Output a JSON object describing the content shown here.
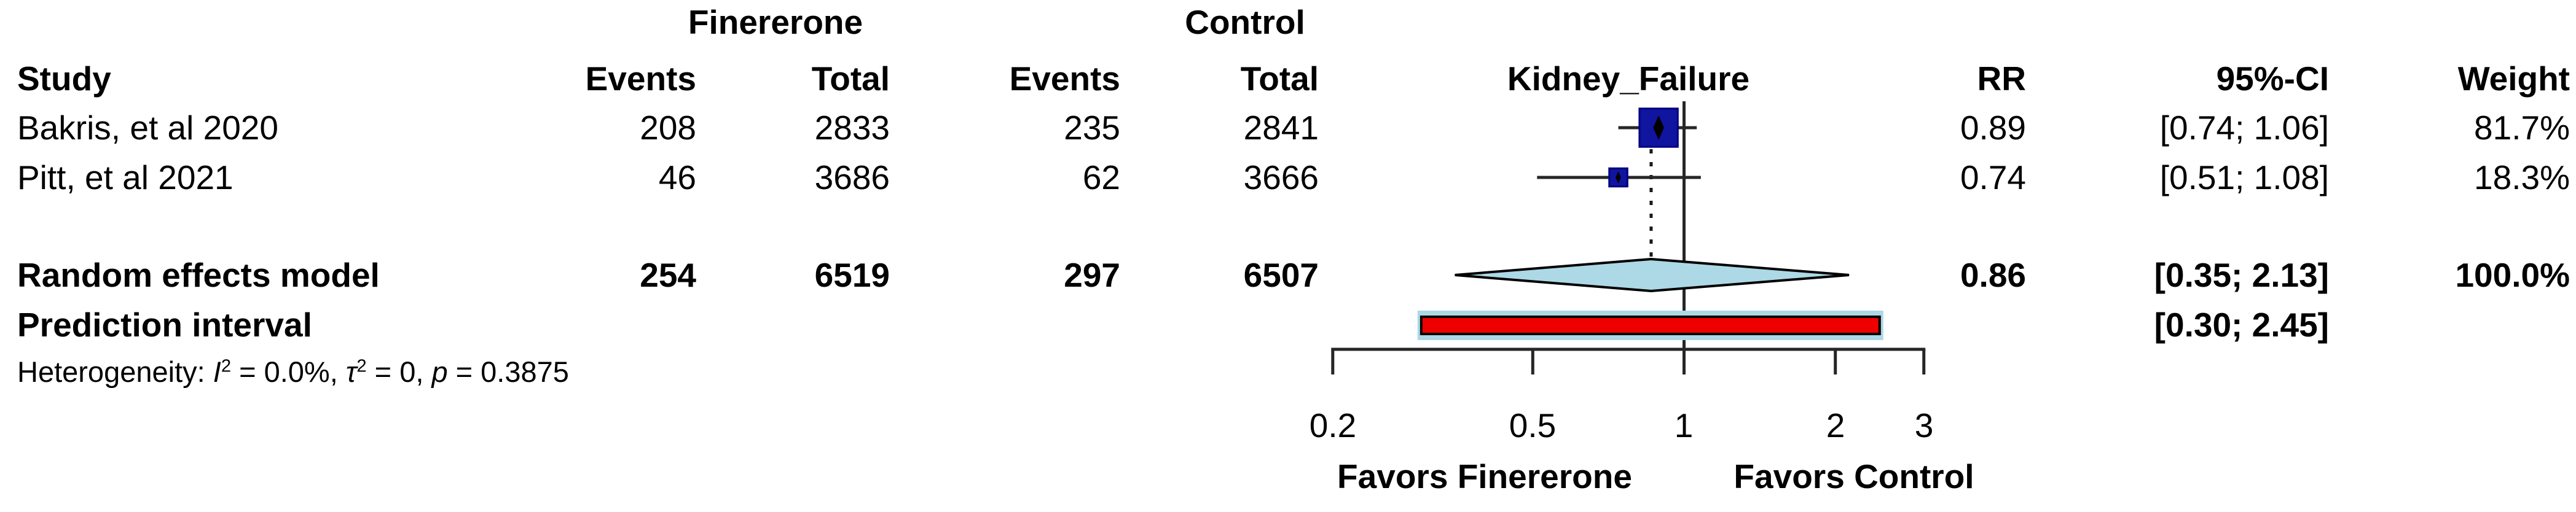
{
  "table": {
    "group_headers": {
      "treatment": "Finererone",
      "control": "Control"
    },
    "columns": {
      "study": "Study",
      "events": "Events",
      "total": "Total",
      "rr": "RR",
      "ci": "95%-CI",
      "weight": "Weight"
    },
    "plot_title": "Kidney_Failure",
    "studies": [
      {
        "name": "Bakris, et al 2020",
        "treat_events": "208",
        "treat_total": "2833",
        "ctrl_events": "235",
        "ctrl_total": "2841",
        "rr": "0.89",
        "ci": "[0.74; 1.06]",
        "weight": "81.7%"
      },
      {
        "name": "Pitt, et al 2021",
        "treat_events": "46",
        "treat_total": "3686",
        "ctrl_events": "62",
        "ctrl_total": "3666",
        "rr": "0.74",
        "ci": "[0.51; 1.08]",
        "weight": "18.3%"
      }
    ],
    "summary": {
      "name": "Random effects model",
      "treat_events": "254",
      "treat_total": "6519",
      "ctrl_events": "297",
      "ctrl_total": "6507",
      "rr": "0.86",
      "ci": "[0.35; 2.13]",
      "weight": "100.0%"
    },
    "prediction": {
      "name": "Prediction interval",
      "ci": "[0.30; 2.45]"
    },
    "heterogeneity": {
      "prefix": "Heterogeneity: ",
      "i_sym": "I",
      "i_sup": "2",
      "i_val": " = 0.0%, ",
      "tau_sym": "τ",
      "tau_sup": "2",
      "tau_val": " = 0, ",
      "p_sym": "p",
      "p_val": " = 0.3875"
    }
  },
  "axis": {
    "tick_labels": [
      "0.2",
      "0.5",
      "1",
      "2",
      "3"
    ],
    "favors_left": "Favors Finererone",
    "favors_right": "Favors Control"
  },
  "chart_data": {
    "type": "forest",
    "x_scale": "log",
    "effect_measure": "RR",
    "outcome": "Kidney_Failure",
    "title": "Kidney_Failure",
    "x_ticks": [
      0.2,
      0.5,
      1,
      2,
      3
    ],
    "x_range": [
      0.2,
      3
    ],
    "ref_line": 1.0,
    "pooled_dotted_line": 0.86,
    "studies": [
      {
        "name": "Bakris, et al 2020",
        "rr": 0.89,
        "ci_low": 0.74,
        "ci_high": 1.06,
        "weight_pct": 81.7
      },
      {
        "name": "Pitt, et al 2021",
        "rr": 0.74,
        "ci_low": 0.51,
        "ci_high": 1.08,
        "weight_pct": 18.3
      }
    ],
    "summary": {
      "model": "Random effects model",
      "rr": 0.86,
      "ci_low": 0.35,
      "ci_high": 2.13,
      "weight_pct": 100.0
    },
    "prediction_interval": {
      "low": 0.3,
      "high": 2.45
    },
    "heterogeneity": {
      "I2_pct": 0.0,
      "tau2": 0,
      "p": 0.3875
    },
    "legend": {
      "left_of_null": "Favors Finererone",
      "right_of_null": "Favors Control"
    },
    "colors": {
      "square_fill": "#10149F",
      "square_border": "#000080",
      "diamond_fill": "#ADD8E6",
      "diamond_border": "#000000",
      "prediction_fill": "#EE0000",
      "prediction_border": "#000000",
      "prediction_halo": "#ADD8E6",
      "line": "#262626"
    }
  }
}
